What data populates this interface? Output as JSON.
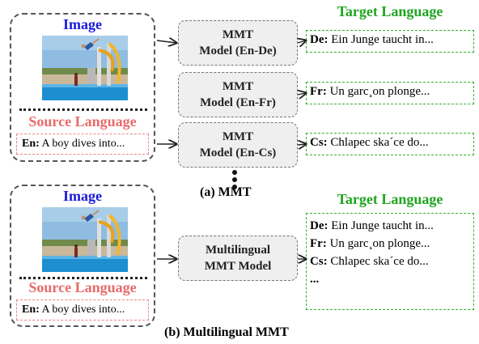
{
  "top": {
    "image_title": "Image",
    "source_title": "Source Language",
    "source_lang": "En:",
    "source_text": "A boy dives into...",
    "target_title": "Target Language",
    "models": [
      {
        "line1": "MMT",
        "line2": "Model (En-De)"
      },
      {
        "line1": "MMT",
        "line2": "Model (En-Fr)"
      },
      {
        "line1": "MMT",
        "line2": "Model (En-Cs)"
      }
    ],
    "targets": [
      {
        "lang": "De:",
        "text": "Ein Junge taucht in..."
      },
      {
        "lang": "Fr:",
        "text": "Un garc¸on plonge..."
      },
      {
        "lang": "Cs:",
        "text": "Chlapec ska´ce do..."
      }
    ],
    "caption": "(a) MMT"
  },
  "bottom": {
    "image_title": "Image",
    "source_title": "Source Language",
    "source_lang": "En:",
    "source_text": "A boy dives into...",
    "target_title": "Target Language",
    "model": {
      "line1": "Multilingual",
      "line2": "MMT Model"
    },
    "targets": [
      {
        "lang": "De:",
        "text": "Ein Junge taucht in..."
      },
      {
        "lang": "Fr:",
        "text": "Un garc¸on plonge..."
      },
      {
        "lang": "Cs:",
        "text": "Chlapec ska´ce do..."
      },
      {
        "lang": "...",
        "text": ""
      }
    ],
    "caption": "(b) Multilingual MMT"
  }
}
